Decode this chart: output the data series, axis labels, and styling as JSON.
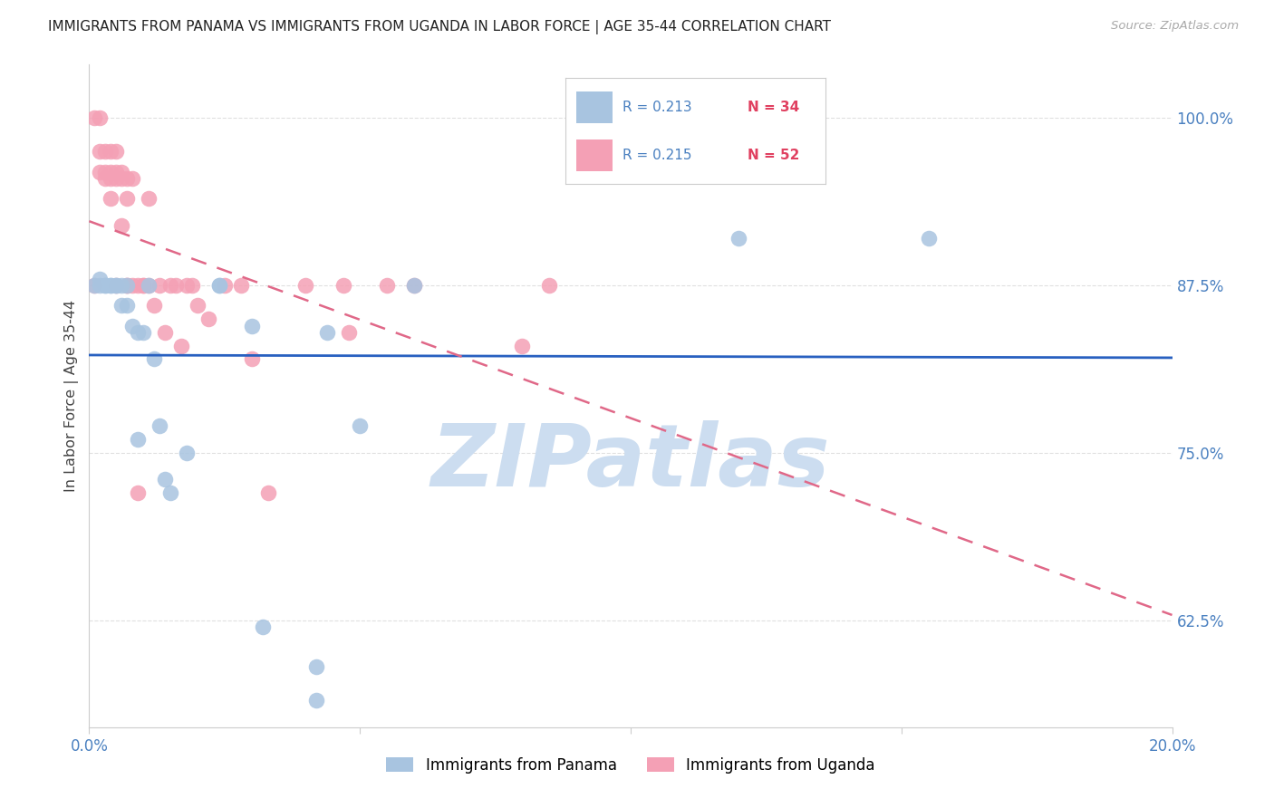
{
  "title": "IMMIGRANTS FROM PANAMA VS IMMIGRANTS FROM UGANDA IN LABOR FORCE | AGE 35-44 CORRELATION CHART",
  "source": "Source: ZipAtlas.com",
  "ylabel": "In Labor Force | Age 35-44",
  "xlim": [
    0.0,
    0.2
  ],
  "ylim": [
    0.545,
    1.04
  ],
  "yticks_right": [
    0.625,
    0.75,
    0.875,
    1.0
  ],
  "ytick_labels_right": [
    "62.5%",
    "75.0%",
    "87.5%",
    "100.0%"
  ],
  "panama_color": "#a8c4e0",
  "uganda_color": "#f4a0b5",
  "panama_line_color": "#2860c0",
  "uganda_line_color": "#e06888",
  "legend_R_panama": "R = 0.213",
  "legend_N_panama": "N = 34",
  "legend_R_uganda": "R = 0.215",
  "legend_N_uganda": "N = 52",
  "panama_x": [
    0.001,
    0.002,
    0.002,
    0.003,
    0.003,
    0.004,
    0.004,
    0.005,
    0.005,
    0.006,
    0.006,
    0.007,
    0.007,
    0.008,
    0.009,
    0.009,
    0.01,
    0.011,
    0.012,
    0.013,
    0.014,
    0.015,
    0.018,
    0.024,
    0.024,
    0.03,
    0.032,
    0.042,
    0.042,
    0.044,
    0.05,
    0.06,
    0.12,
    0.155
  ],
  "panama_y": [
    0.875,
    0.875,
    0.88,
    0.875,
    0.875,
    0.875,
    0.875,
    0.875,
    0.875,
    0.86,
    0.875,
    0.875,
    0.86,
    0.845,
    0.84,
    0.76,
    0.84,
    0.875,
    0.82,
    0.77,
    0.73,
    0.72,
    0.75,
    0.875,
    0.875,
    0.845,
    0.62,
    0.59,
    0.565,
    0.84,
    0.77,
    0.875,
    0.91,
    0.91
  ],
  "uganda_x": [
    0.001,
    0.001,
    0.002,
    0.002,
    0.002,
    0.003,
    0.003,
    0.003,
    0.004,
    0.004,
    0.004,
    0.004,
    0.005,
    0.005,
    0.005,
    0.005,
    0.006,
    0.006,
    0.006,
    0.007,
    0.007,
    0.007,
    0.007,
    0.008,
    0.008,
    0.009,
    0.009,
    0.01,
    0.01,
    0.011,
    0.011,
    0.012,
    0.013,
    0.014,
    0.015,
    0.016,
    0.017,
    0.018,
    0.019,
    0.02,
    0.022,
    0.025,
    0.028,
    0.03,
    0.033,
    0.04,
    0.047,
    0.048,
    0.055,
    0.06,
    0.08,
    0.085
  ],
  "uganda_y": [
    1.0,
    0.875,
    1.0,
    0.975,
    0.96,
    0.975,
    0.96,
    0.955,
    0.975,
    0.96,
    0.955,
    0.94,
    0.975,
    0.96,
    0.955,
    0.875,
    0.96,
    0.955,
    0.92,
    0.955,
    0.94,
    0.875,
    0.875,
    0.955,
    0.875,
    0.875,
    0.72,
    0.875,
    0.875,
    0.94,
    0.875,
    0.86,
    0.875,
    0.84,
    0.875,
    0.875,
    0.83,
    0.875,
    0.875,
    0.86,
    0.85,
    0.875,
    0.875,
    0.82,
    0.72,
    0.875,
    0.875,
    0.84,
    0.875,
    0.875,
    0.83,
    0.875
  ],
  "watermark_text": "ZIPatlas",
  "watermark_color": "#ccddf0",
  "background_color": "#ffffff",
  "grid_color": "#e0e0e0"
}
